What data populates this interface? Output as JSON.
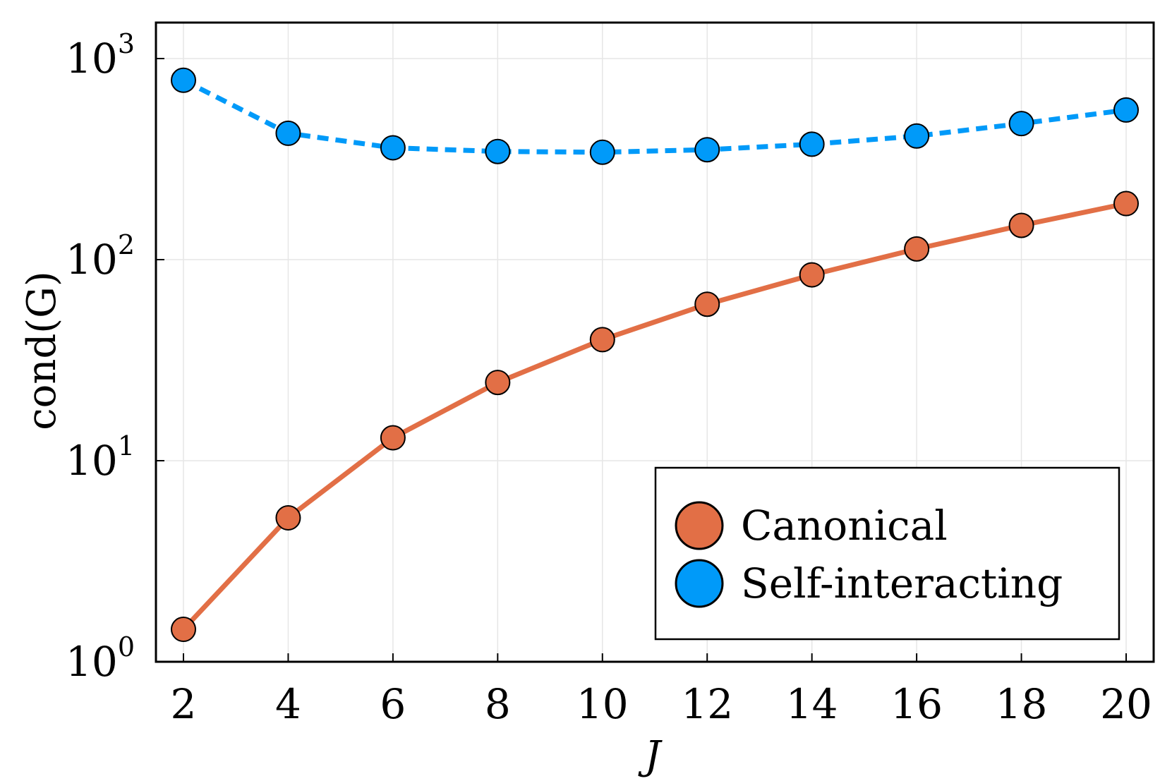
{
  "chart_data": {
    "type": "line",
    "xlabel": "J",
    "ylabel": "cond(G)",
    "yscale": "log",
    "xlim": [
      1.5,
      20.5
    ],
    "ylim": [
      1,
      1500
    ],
    "xticks": [
      2,
      4,
      6,
      8,
      10,
      12,
      14,
      16,
      18,
      20
    ],
    "xtick_labels": [
      "2",
      "4",
      "6",
      "8",
      "10",
      "12",
      "14",
      "16",
      "18",
      "20"
    ],
    "yticks": [
      {
        "value": 1,
        "base": "10",
        "exp": "0"
      },
      {
        "value": 10,
        "base": "10",
        "exp": "1"
      },
      {
        "value": 100,
        "base": "10",
        "exp": "2"
      },
      {
        "value": 1000,
        "base": "10",
        "exp": "3"
      }
    ],
    "grid": true,
    "legend_position": "bottom-right",
    "x": [
      2,
      4,
      6,
      8,
      10,
      12,
      14,
      16,
      18,
      20
    ],
    "series": [
      {
        "name": "Canonical",
        "color": "#e26f46",
        "line_style": "solid",
        "values": [
          1.45,
          5.2,
          13.0,
          24.5,
          40.0,
          60.0,
          84.0,
          113.0,
          148.0,
          190.0
        ]
      },
      {
        "name": "Self-interacting",
        "color": "#009af9",
        "line_style": "dashed",
        "values": [
          780,
          425,
          360,
          345,
          342,
          352,
          375,
          412,
          475,
          555
        ]
      }
    ]
  }
}
